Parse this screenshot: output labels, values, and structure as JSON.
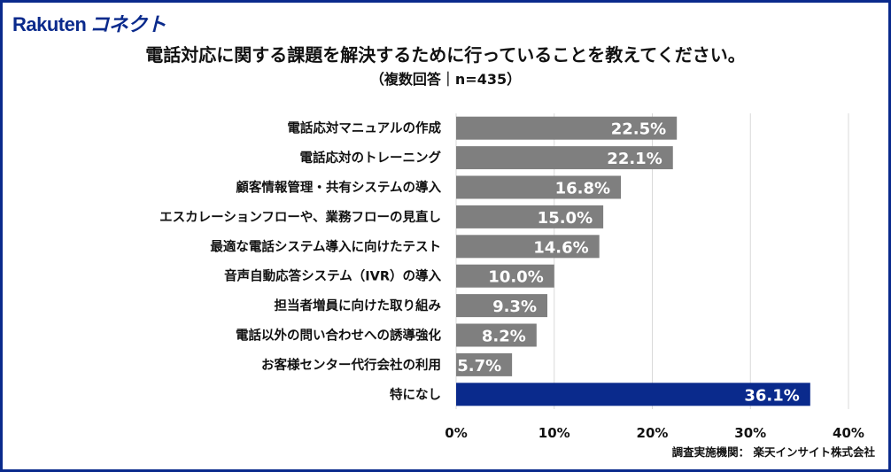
{
  "logo": {
    "text": "Rakuten コネクト"
  },
  "colors": {
    "bar": "#7f7f7f",
    "highlight": "#0a2a8c",
    "frame": "#0a2a8c",
    "grid": "#d9d9d9"
  },
  "chart_data": {
    "type": "bar",
    "orientation": "horizontal",
    "title": "電話対応に関する課題を解決するために行っていることを教えてください。",
    "subtitle": "（複数回答｜n=435）",
    "categories": [
      "電話応対マニュアルの作成",
      "電話応対のトレーニング",
      "顧客情報管理・共有システムの導入",
      "エスカレーションフローや、業務フローの見直し",
      "最適な電話システム導入に向けたテスト",
      "音声自動応答システム（IVR）の導入",
      "担当者増員に向けた取り組み",
      "電話以外の問い合わせへの誘導強化",
      "お客様センター代行会社の利用",
      "特になし"
    ],
    "values": [
      22.5,
      22.1,
      16.8,
      15.0,
      14.6,
      10.0,
      9.3,
      8.2,
      5.7,
      36.1
    ],
    "data_labels": [
      "22.5%",
      "22.1%",
      "16.8%",
      "15.0%",
      "14.6%",
      "10.0%",
      "9.3%",
      "8.2%",
      "5.7%",
      "36.1%"
    ],
    "highlight_index": 9,
    "xlim": [
      0,
      40
    ],
    "xticks": [
      0,
      10,
      20,
      30,
      40
    ],
    "xtick_labels": [
      "0%",
      "10%",
      "20%",
      "30%",
      "40%"
    ],
    "grid": true
  },
  "credit": "調査実施機関： 楽天インサイト株式会社"
}
